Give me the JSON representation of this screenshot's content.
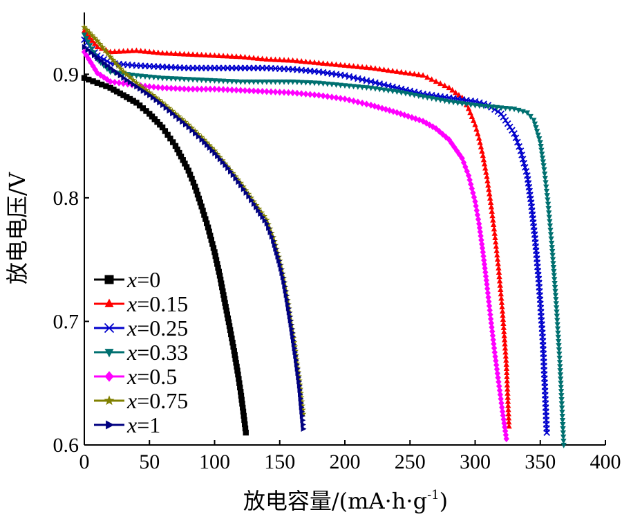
{
  "chart_data": {
    "type": "line",
    "xlabel": "放电容量/(mA·h·g",
    "xlabel_sup": "-1",
    "xlabel_close": ")",
    "ylabel": "放电电压/V",
    "xlim": [
      0,
      400
    ],
    "ylim": [
      0.6,
      0.95
    ],
    "xticks": [
      0,
      50,
      100,
      150,
      200,
      250,
      300,
      350,
      400
    ],
    "yticks": [
      0.6,
      0.7,
      0.8,
      0.9
    ],
    "grid": false,
    "legend_position": "bottom-left",
    "legend_prefix": "x",
    "series": [
      {
        "name": "x=0",
        "label_value": "=0",
        "color": "#000000",
        "marker": "square",
        "x": [
          0,
          10,
          20,
          30,
          40,
          50,
          60,
          70,
          80,
          85,
          90,
          95,
          100,
          104,
          108,
          112,
          115,
          118,
          120,
          122,
          124
        ],
        "y": [
          0.897,
          0.893,
          0.889,
          0.883,
          0.877,
          0.868,
          0.857,
          0.842,
          0.822,
          0.809,
          0.793,
          0.776,
          0.756,
          0.737,
          0.715,
          0.693,
          0.676,
          0.657,
          0.643,
          0.627,
          0.61
        ]
      },
      {
        "name": "x=0.15",
        "label_value": "=0.15",
        "color": "#ff0000",
        "marker": "triangle-up",
        "x": [
          0,
          10,
          20,
          40,
          60,
          80,
          100,
          120,
          140,
          160,
          180,
          200,
          220,
          240,
          260,
          270,
          280,
          290,
          295,
          300,
          303,
          306,
          309,
          312,
          315,
          318,
          321,
          324,
          326
        ],
        "y": [
          0.935,
          0.922,
          0.918,
          0.919,
          0.917,
          0.916,
          0.915,
          0.914,
          0.912,
          0.911,
          0.909,
          0.907,
          0.905,
          0.902,
          0.899,
          0.894,
          0.889,
          0.881,
          0.872,
          0.859,
          0.848,
          0.834,
          0.817,
          0.796,
          0.771,
          0.743,
          0.708,
          0.665,
          0.615
        ]
      },
      {
        "name": "x=0.25",
        "label_value": "=0.25",
        "color": "#0000cc",
        "marker": "x",
        "x": [
          0,
          10,
          20,
          40,
          60,
          80,
          100,
          120,
          140,
          160,
          180,
          200,
          220,
          240,
          260,
          280,
          300,
          310,
          320,
          330,
          335,
          340,
          343,
          346,
          349,
          352,
          355
        ],
        "y": [
          0.928,
          0.915,
          0.909,
          0.907,
          0.906,
          0.905,
          0.905,
          0.905,
          0.905,
          0.904,
          0.902,
          0.899,
          0.894,
          0.889,
          0.884,
          0.881,
          0.878,
          0.875,
          0.868,
          0.852,
          0.838,
          0.818,
          0.796,
          0.767,
          0.731,
          0.684,
          0.61
        ]
      },
      {
        "name": "x=0.33",
        "label_value": "=0.33",
        "color": "#007070",
        "marker": "triangle-down",
        "x": [
          0,
          10,
          20,
          40,
          60,
          80,
          100,
          120,
          140,
          160,
          180,
          200,
          220,
          240,
          260,
          280,
          300,
          320,
          330,
          340,
          345,
          350,
          353,
          356,
          359,
          362,
          365,
          368
        ],
        "y": [
          0.932,
          0.912,
          0.902,
          0.899,
          0.897,
          0.896,
          0.895,
          0.894,
          0.894,
          0.894,
          0.893,
          0.891,
          0.889,
          0.886,
          0.882,
          0.878,
          0.875,
          0.873,
          0.872,
          0.869,
          0.863,
          0.845,
          0.823,
          0.795,
          0.76,
          0.718,
          0.667,
          0.6
        ]
      },
      {
        "name": "x=0.5",
        "label_value": "=0.5",
        "color": "#ff00ff",
        "marker": "diamond",
        "x": [
          0,
          10,
          20,
          40,
          60,
          80,
          100,
          120,
          140,
          160,
          180,
          200,
          220,
          240,
          260,
          270,
          280,
          290,
          295,
          300,
          303,
          306,
          309,
          312,
          315,
          318,
          321,
          324
        ],
        "y": [
          0.918,
          0.901,
          0.894,
          0.891,
          0.889,
          0.888,
          0.888,
          0.887,
          0.886,
          0.885,
          0.883,
          0.88,
          0.875,
          0.869,
          0.862,
          0.856,
          0.847,
          0.832,
          0.818,
          0.797,
          0.779,
          0.756,
          0.73,
          0.702,
          0.675,
          0.651,
          0.627,
          0.605
        ]
      },
      {
        "name": "x=0.75",
        "label_value": "=0.75",
        "color": "#808000",
        "marker": "star",
        "x": [
          0,
          10,
          20,
          30,
          40,
          50,
          60,
          70,
          80,
          90,
          100,
          110,
          120,
          130,
          140,
          145,
          150,
          153,
          156,
          159,
          162,
          165,
          168
        ],
        "y": [
          0.938,
          0.927,
          0.914,
          0.902,
          0.893,
          0.885,
          0.877,
          0.868,
          0.859,
          0.849,
          0.838,
          0.825,
          0.812,
          0.797,
          0.782,
          0.768,
          0.749,
          0.735,
          0.717,
          0.697,
          0.676,
          0.652,
          0.625
        ]
      },
      {
        "name": "x=1",
        "label_value": "=1",
        "color": "#000080",
        "marker": "triangle-right",
        "x": [
          0,
          10,
          20,
          30,
          40,
          50,
          60,
          70,
          80,
          90,
          100,
          110,
          120,
          130,
          140,
          145,
          150,
          153,
          156,
          159,
          162,
          165,
          168
        ],
        "y": [
          0.922,
          0.913,
          0.905,
          0.897,
          0.89,
          0.883,
          0.875,
          0.866,
          0.857,
          0.847,
          0.836,
          0.824,
          0.81,
          0.795,
          0.779,
          0.765,
          0.746,
          0.732,
          0.714,
          0.694,
          0.672,
          0.648,
          0.613
        ]
      }
    ]
  }
}
